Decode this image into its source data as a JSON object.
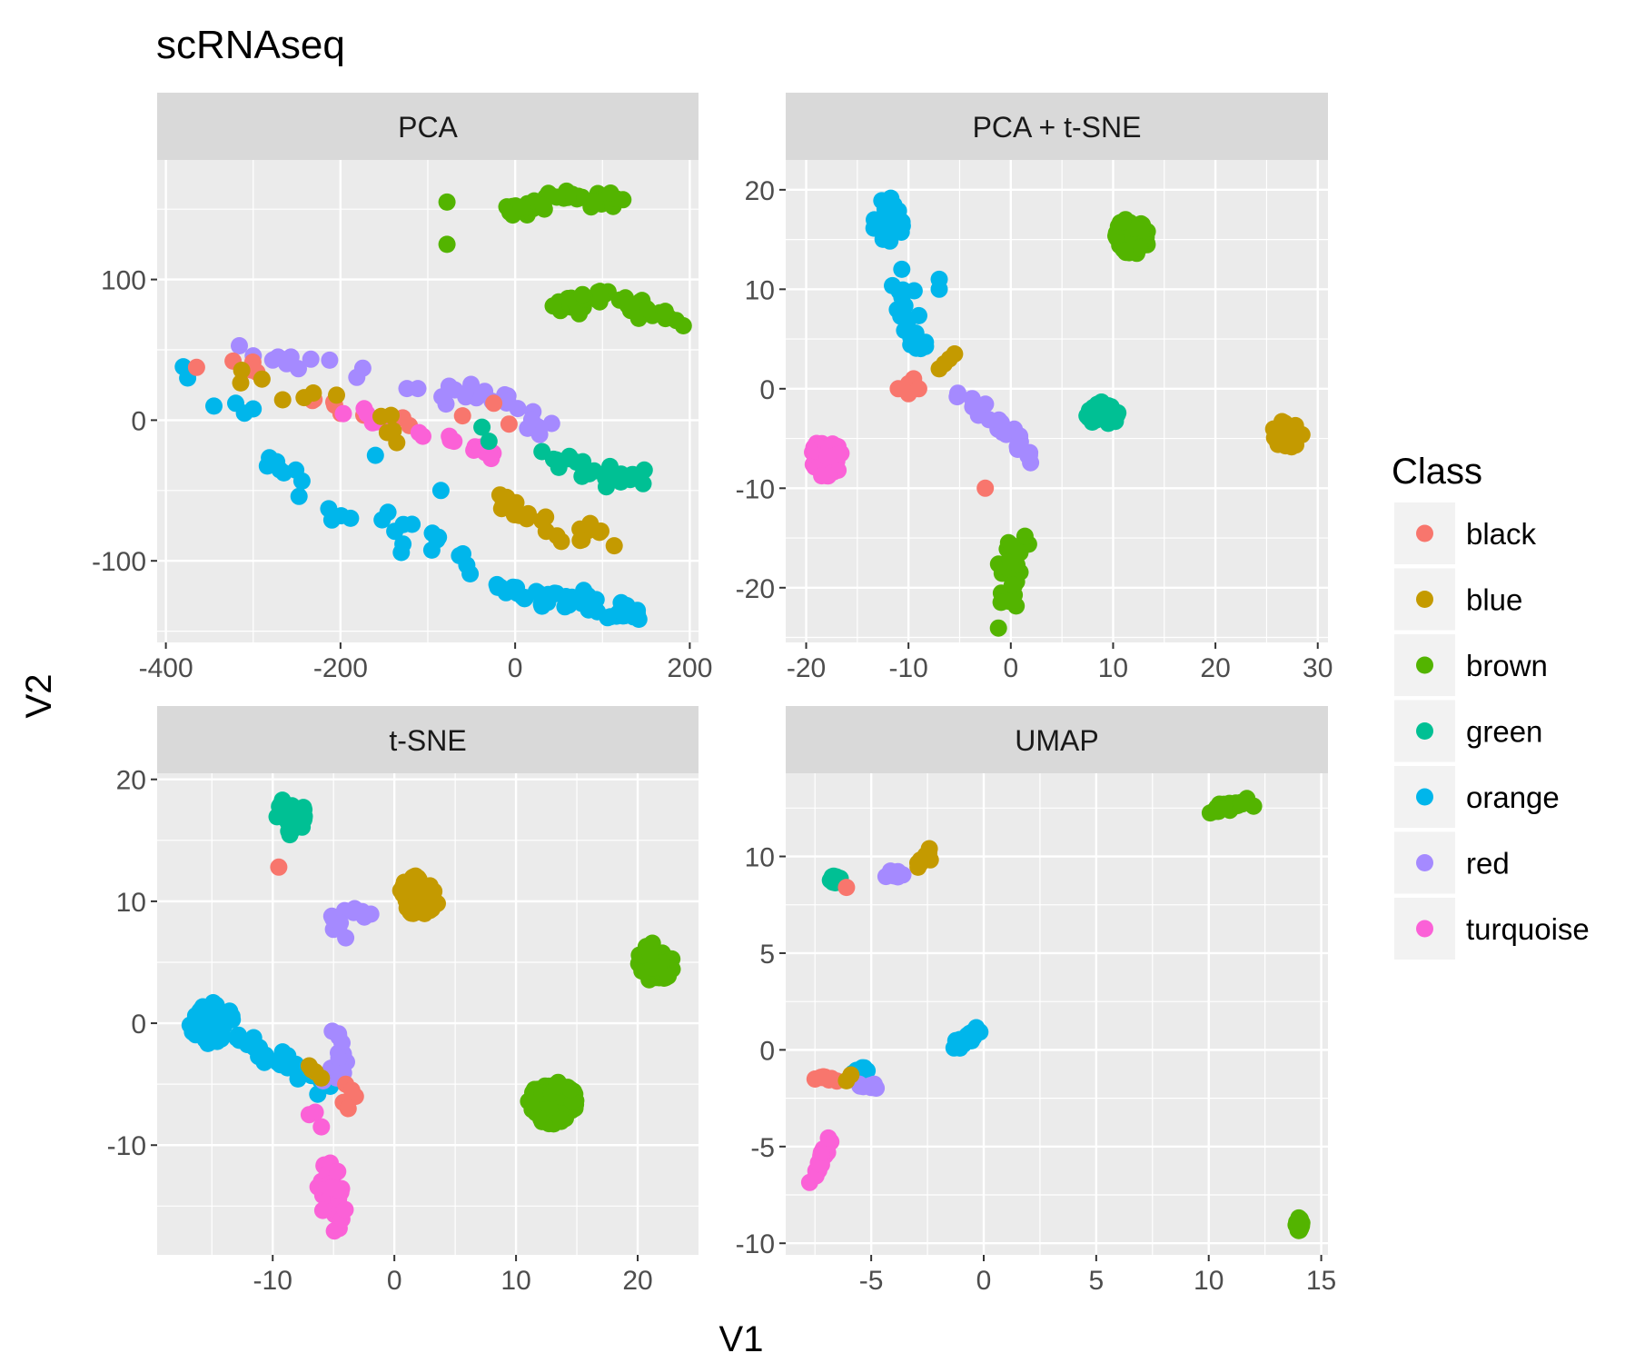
{
  "chart_data": {
    "type": "scatter",
    "title": "scRNAseq",
    "xlabel": "V1",
    "ylabel": "V2",
    "legend": {
      "title": "Class",
      "position": "right",
      "entries": [
        {
          "name": "black",
          "color": "#F8766D"
        },
        {
          "name": "blue",
          "color": "#C49A00"
        },
        {
          "name": "brown",
          "color": "#53B400"
        },
        {
          "name": "green",
          "color": "#00C094"
        },
        {
          "name": "orange",
          "color": "#00B6EB"
        },
        {
          "name": "red",
          "color": "#A58AFF"
        },
        {
          "name": "turquoise",
          "color": "#FB61D7"
        }
      ]
    },
    "panels": [
      {
        "title": "PCA",
        "xlim": [
          -410,
          210
        ],
        "ylim": [
          -158,
          185
        ],
        "xticks": [
          -400,
          -200,
          0,
          200
        ],
        "xtick_labels": [
          "-400",
          "-200",
          "0",
          "200"
        ],
        "yticks": [
          -100,
          0,
          100
        ],
        "ytick_labels": [
          "-100",
          "0",
          "100"
        ],
        "clusters": [
          {
            "cls": "brown",
            "path": [
              [
                -10,
                148
              ],
              [
                50,
                158
              ],
              [
                130,
                155
              ]
            ],
            "n": 44,
            "jx": 8,
            "jy": 6
          },
          {
            "cls": "brown",
            "path": [
              [
                40,
                80
              ],
              [
                110,
                88
              ],
              [
                190,
                72
              ]
            ],
            "n": 44,
            "jx": 7,
            "jy": 6
          },
          {
            "cls": "brown",
            "points": [
              [
                -78,
                155
              ],
              [
                -78,
                125
              ]
            ]
          },
          {
            "cls": "green",
            "path": [
              [
                30,
                -25
              ],
              [
                90,
                -38
              ],
              [
                150,
                -42
              ]
            ],
            "n": 26,
            "jx": 5,
            "jy": 5
          },
          {
            "cls": "blue",
            "path": [
              [
                -20,
                -52
              ],
              [
                40,
                -78
              ],
              [
                120,
                -86
              ]
            ],
            "n": 26,
            "jx": 6,
            "jy": 6
          },
          {
            "cls": "orange",
            "path": [
              [
                -20,
                -122
              ],
              [
                60,
                -128
              ],
              [
                140,
                -138
              ]
            ],
            "n": 48,
            "jx": 8,
            "jy": 6
          },
          {
            "cls": "orange",
            "path": [
              [
                -290,
                -25
              ],
              [
                -200,
                -70
              ],
              [
                -100,
                -90
              ],
              [
                -40,
                -115
              ]
            ],
            "n": 26,
            "jx": 10,
            "jy": 10
          },
          {
            "cls": "orange",
            "points": [
              [
                -380,
                38
              ],
              [
                -375,
                30
              ],
              [
                -345,
                10
              ],
              [
                -320,
                12
              ],
              [
                -310,
                5
              ],
              [
                -300,
                8
              ],
              [
                -160,
                -25
              ],
              [
                -85,
                -50
              ],
              [
                -60,
                -95
              ]
            ]
          },
          {
            "cls": "red",
            "path": [
              [
                -310,
                45
              ],
              [
                -200,
                38
              ],
              [
                -100,
                25
              ],
              [
                0,
                10
              ],
              [
                40,
                -5
              ]
            ],
            "n": 34,
            "jx": 14,
            "jy": 9
          },
          {
            "cls": "black",
            "path": [
              [
                -360,
                40
              ],
              [
                -280,
                30
              ],
              [
                -200,
                5
              ],
              [
                -100,
                -2
              ],
              [
                10,
                5
              ]
            ],
            "n": 16,
            "jx": 10,
            "jy": 8
          },
          {
            "cls": "turquoise",
            "path": [
              [
                -200,
                8
              ],
              [
                -120,
                -10
              ],
              [
                -40,
                -18
              ],
              [
                -28,
                -25
              ]
            ],
            "n": 24,
            "jx": 9,
            "jy": 5
          },
          {
            "cls": "blue",
            "path": [
              [
                -320,
                30
              ],
              [
                -260,
                20
              ],
              [
                -160,
                8
              ],
              [
                -135,
                -10
              ]
            ],
            "n": 12,
            "jx": 8,
            "jy": 8
          },
          {
            "cls": "green",
            "points": [
              [
                -38,
                -5
              ],
              [
                -30,
                -15
              ]
            ]
          }
        ]
      },
      {
        "title": "PCA + t-SNE",
        "xlim": [
          -22,
          31
        ],
        "ylim": [
          -25.5,
          23
        ],
        "xticks": [
          -20,
          -10,
          0,
          10,
          20,
          30
        ],
        "xtick_labels": [
          "-20",
          "-10",
          "0",
          "10",
          "20",
          "30"
        ],
        "yticks": [
          -20,
          -10,
          0,
          10,
          20
        ],
        "ytick_labels": [
          "-20",
          "-10",
          "0",
          "10",
          "20"
        ],
        "clusters": [
          {
            "cls": "orange",
            "blob": [
              -12,
              17
            ],
            "n": 40,
            "jx": 1.6,
            "jy": 2.2
          },
          {
            "cls": "orange",
            "path": [
              [
                -11,
                12
              ],
              [
                -10,
                6
              ],
              [
                -8,
                3
              ]
            ],
            "n": 24,
            "jx": 0.8,
            "jy": 1
          },
          {
            "cls": "orange",
            "points": [
              [
                -7,
                10
              ],
              [
                -7,
                11
              ]
            ]
          },
          {
            "cls": "brown",
            "blob": [
              12,
              15.5
            ],
            "n": 40,
            "jx": 1.8,
            "jy": 2
          },
          {
            "cls": "brown",
            "path": [
              [
                0.5,
                -15
              ],
              [
                0,
                -19
              ],
              [
                0,
                -23
              ]
            ],
            "n": 40,
            "jx": 1,
            "jy": 1.4
          },
          {
            "cls": "green",
            "blob": [
              9,
              -2.5
            ],
            "n": 30,
            "jx": 1.6,
            "jy": 1.2
          },
          {
            "cls": "blue",
            "blob": [
              27,
              -4.5
            ],
            "n": 30,
            "jx": 1.5,
            "jy": 1.5
          },
          {
            "cls": "turquoise",
            "blob": [
              -18,
              -7
            ],
            "n": 42,
            "jx": 1.5,
            "jy": 2
          },
          {
            "cls": "red",
            "path": [
              [
                -5,
                0
              ],
              [
                -2,
                -3
              ],
              [
                0,
                -4.5
              ],
              [
                2,
                -7
              ]
            ],
            "n": 26,
            "jx": 0.9,
            "jy": 0.9
          },
          {
            "cls": "black",
            "points": [
              [
                -11,
                0
              ],
              [
                -10,
                0.5
              ],
              [
                -9.5,
                1
              ],
              [
                -10,
                -0.5
              ],
              [
                -9,
                0
              ],
              [
                -2.5,
                -10
              ]
            ]
          },
          {
            "cls": "blue",
            "points": [
              [
                -7,
                2
              ],
              [
                -6,
                3
              ],
              [
                -5.5,
                3.5
              ],
              [
                -6.5,
                2.5
              ]
            ]
          }
        ]
      },
      {
        "title": "t-SNE",
        "xlim": [
          -19.5,
          25
        ],
        "ylim": [
          -19,
          20.5
        ],
        "xticks": [
          -10,
          0,
          10,
          20
        ],
        "xtick_labels": [
          "-10",
          "0",
          "10",
          "20"
        ],
        "yticks": [
          -10,
          0,
          10,
          20
        ],
        "ytick_labels": [
          "-10",
          "0",
          "10",
          "20"
        ],
        "clusters": [
          {
            "cls": "green",
            "blob": [
              -8.5,
              17
            ],
            "n": 30,
            "jx": 1.2,
            "jy": 1.6
          },
          {
            "cls": "black",
            "points": [
              [
                -9.5,
                12.8
              ]
            ]
          },
          {
            "cls": "blue",
            "blob": [
              2,
              10.5
            ],
            "n": 60,
            "jx": 1.7,
            "jy": 1.6
          },
          {
            "cls": "red",
            "path": [
              [
                -5,
                8.5
              ],
              [
                -3.5,
                9
              ],
              [
                -2,
                9.8
              ]
            ],
            "n": 14,
            "jx": 0.7,
            "jy": 0.6
          },
          {
            "cls": "red",
            "points": [
              [
                -4,
                7
              ]
            ]
          },
          {
            "cls": "brown",
            "blob": [
              21.5,
              5
            ],
            "n": 50,
            "jx": 1.5,
            "jy": 1.6
          },
          {
            "cls": "brown",
            "blob": [
              13,
              -6.5
            ],
            "n": 90,
            "jx": 2,
            "jy": 1.8
          },
          {
            "cls": "orange",
            "blob": [
              -15,
              0
            ],
            "n": 70,
            "jx": 1.8,
            "jy": 1.7
          },
          {
            "cls": "orange",
            "path": [
              [
                -13,
                -1
              ],
              [
                -10,
                -3
              ],
              [
                -8,
                -4
              ],
              [
                -6,
                -5
              ]
            ],
            "n": 30,
            "jx": 0.8,
            "jy": 0.8
          },
          {
            "cls": "red",
            "path": [
              [
                -5,
                -1
              ],
              [
                -4.5,
                -3
              ],
              [
                -5,
                -4.5
              ]
            ],
            "n": 18,
            "jx": 0.6,
            "jy": 0.6
          },
          {
            "cls": "blue",
            "points": [
              [
                -7,
                -3.5
              ],
              [
                -6.5,
                -4
              ],
              [
                -6,
                -4.5
              ],
              [
                -6.8,
                -3.8
              ]
            ]
          },
          {
            "cls": "black",
            "points": [
              [
                -4,
                -5
              ],
              [
                -3.5,
                -5.5
              ],
              [
                -3.2,
                -6
              ],
              [
                -4.2,
                -6.5
              ],
              [
                -3.8,
                -7
              ]
            ]
          },
          {
            "cls": "turquoise",
            "points": [
              [
                -7,
                -7.5
              ],
              [
                -6.5,
                -7.3
              ],
              [
                -6,
                -8.5
              ]
            ]
          },
          {
            "cls": "turquoise",
            "path": [
              [
                -6,
                -11.5
              ],
              [
                -5,
                -14
              ],
              [
                -4.5,
                -16.5
              ]
            ],
            "n": 40,
            "jx": 0.7,
            "jy": 0.9
          }
        ]
      },
      {
        "title": "UMAP",
        "xlim": [
          -8.8,
          15.3
        ],
        "ylim": [
          -10.6,
          14.3
        ],
        "xticks": [
          -5,
          0,
          5,
          10,
          15
        ],
        "xtick_labels": [
          "-5",
          "0",
          "5",
          "10",
          "15"
        ],
        "yticks": [
          -10,
          -5,
          0,
          5,
          10
        ],
        "ytick_labels": [
          "-10",
          "-5",
          "0",
          "5",
          "10"
        ],
        "clusters": [
          {
            "cls": "brown",
            "path": [
              [
                10.2,
                12.3
              ],
              [
                11,
                12.6
              ],
              [
                11.8,
                12.8
              ]
            ],
            "n": 25,
            "jx": 0.25,
            "jy": 0.2
          },
          {
            "cls": "brown",
            "blob": [
              14,
              -9
            ],
            "n": 18,
            "jx": 0.15,
            "jy": 0.35
          },
          {
            "cls": "green",
            "blob": [
              -6.6,
              8.8
            ],
            "n": 14,
            "jx": 0.25,
            "jy": 0.2
          },
          {
            "cls": "black",
            "points": [
              [
                -6.1,
                8.4
              ]
            ]
          },
          {
            "cls": "blue",
            "path": [
              [
                -2.9,
                9.5
              ],
              [
                -2.5,
                10.2
              ]
            ],
            "n": 14,
            "jx": 0.18,
            "jy": 0.3
          },
          {
            "cls": "red",
            "path": [
              [
                -4.4,
                9
              ],
              [
                -3.5,
                9.2
              ]
            ],
            "n": 8,
            "jx": 0.2,
            "jy": 0.15
          },
          {
            "cls": "orange",
            "path": [
              [
                -1.3,
                0.2
              ],
              [
                -0.7,
                0.6
              ],
              [
                -0.1,
                1
              ]
            ],
            "n": 30,
            "jx": 0.2,
            "jy": 0.25
          },
          {
            "cls": "black",
            "path": [
              [
                -7.4,
                -1.4
              ],
              [
                -6.5,
                -1.6
              ]
            ],
            "n": 8,
            "jx": 0.2,
            "jy": 0.12
          },
          {
            "cls": "orange",
            "path": [
              [
                -6,
                -1.2
              ],
              [
                -4.8,
                -0.9
              ]
            ],
            "n": 8,
            "jx": 0.15,
            "jy": 0.12
          },
          {
            "cls": "red",
            "path": [
              [
                -5.8,
                -1.8
              ],
              [
                -4.8,
                -2
              ]
            ],
            "n": 8,
            "jx": 0.15,
            "jy": 0.12
          },
          {
            "cls": "blue",
            "points": [
              [
                -6.1,
                -1.6
              ],
              [
                -5.9,
                -1.3
              ]
            ]
          },
          {
            "cls": "turquoise",
            "path": [
              [
                -6.8,
                -4.4
              ],
              [
                -7.2,
                -5.7
              ],
              [
                -7.6,
                -6.8
              ]
            ],
            "n": 16,
            "jx": 0.15,
            "jy": 0.2
          }
        ]
      }
    ]
  }
}
